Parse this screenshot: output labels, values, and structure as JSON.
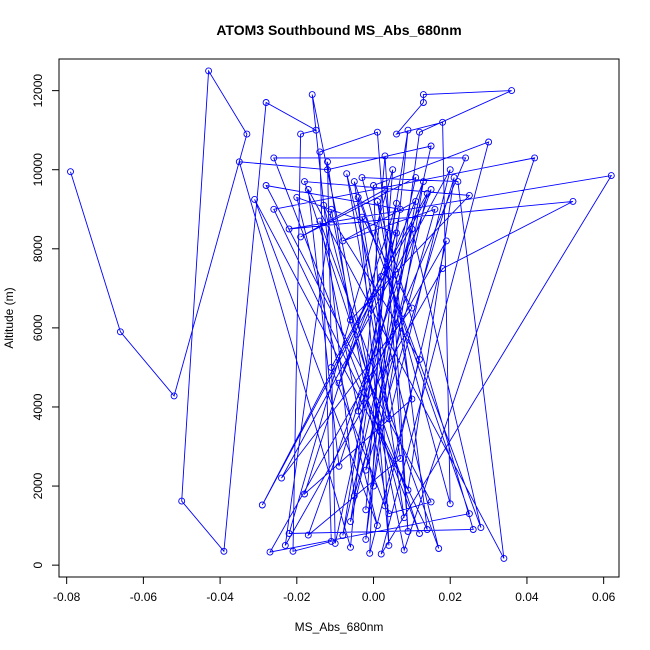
{
  "chart_data": {
    "type": "line",
    "title": "ATOM3 Southbound MS_Abs_680nm",
    "xlabel": "MS_Abs_680nm",
    "ylabel": "Altitude (m)",
    "xlim": [
      -0.082,
      0.064
    ],
    "ylim": [
      -300,
      12800
    ],
    "xticks": [
      -0.08,
      -0.06,
      -0.04,
      -0.02,
      0.0,
      0.02,
      0.04,
      0.06
    ],
    "xtick_labels": [
      "-0.08",
      "-0.06",
      "-0.04",
      "-0.02",
      "0.00",
      "0.02",
      "0.04",
      "0.06"
    ],
    "yticks": [
      0,
      2000,
      4000,
      6000,
      8000,
      10000,
      12000
    ],
    "ytick_labels": [
      "0",
      "2000",
      "4000",
      "6000",
      "8000",
      "10000",
      "12000"
    ],
    "grid": false,
    "legend": "none",
    "series_style": {
      "color": "#0000ff",
      "marker": "open-circle",
      "line": "solid"
    },
    "points": [
      [
        -0.079,
        9950
      ],
      [
        -0.066,
        5900
      ],
      [
        -0.052,
        4280
      ],
      [
        -0.033,
        10900
      ],
      [
        -0.043,
        12500
      ],
      [
        -0.05,
        1620
      ],
      [
        -0.039,
        350
      ],
      [
        -0.028,
        11700
      ],
      [
        -0.015,
        11000
      ],
      [
        -0.019,
        10900
      ],
      [
        -0.021,
        350
      ],
      [
        -0.011,
        600
      ],
      [
        -0.014,
        10450
      ],
      [
        0.001,
        10950
      ],
      [
        0.009,
        850
      ],
      [
        0.003,
        10350
      ],
      [
        -0.006,
        450
      ],
      [
        -0.035,
        10200
      ],
      [
        -0.012,
        10000
      ],
      [
        0.015,
        10600
      ],
      [
        -0.008,
        750
      ],
      [
        0.009,
        11000
      ],
      [
        -0.002,
        650
      ],
      [
        0.012,
        10950
      ],
      [
        0.036,
        12000
      ],
      [
        0.013,
        11900
      ],
      [
        0.013,
        11700
      ],
      [
        0.006,
        10900
      ],
      [
        0.018,
        11200
      ],
      [
        0.02,
        1550
      ],
      [
        -0.003,
        9800
      ],
      [
        0.022,
        9700
      ],
      [
        0.034,
        170
      ],
      [
        -0.017,
        9500
      ],
      [
        -0.009,
        2500
      ],
      [
        0.01,
        8500
      ],
      [
        0.028,
        950
      ],
      [
        -0.004,
        9300
      ],
      [
        0.004,
        500
      ],
      [
        0.0,
        9600
      ],
      [
        0.03,
        10700
      ],
      [
        0.002,
        280
      ],
      [
        0.062,
        9850
      ],
      [
        -0.022,
        8500
      ],
      [
        0.052,
        9200
      ],
      [
        0.018,
        7500
      ],
      [
        -0.023,
        500
      ],
      [
        -0.011,
        9000
      ],
      [
        0.004,
        1300
      ],
      [
        0.015,
        1600
      ],
      [
        -0.028,
        9600
      ],
      [
        0.007,
        9000
      ],
      [
        -0.004,
        3900
      ],
      [
        0.024,
        10300
      ],
      [
        -0.026,
        10300
      ],
      [
        0.012,
        800
      ],
      [
        -0.018,
        9700
      ],
      [
        0.025,
        9350
      ],
      [
        -0.006,
        6200
      ],
      [
        -0.012,
        10200
      ],
      [
        -0.01,
        550
      ],
      [
        0.011,
        9800
      ],
      [
        -0.019,
        8300
      ],
      [
        0.003,
        9500
      ],
      [
        0.014,
        900
      ],
      [
        -0.026,
        9000
      ],
      [
        0.042,
        10300
      ],
      [
        0.008,
        380
      ],
      [
        -0.016,
        11900
      ],
      [
        -0.005,
        1750
      ],
      [
        0.016,
        9000
      ],
      [
        -0.008,
        8200
      ],
      [
        0.011,
        9200
      ],
      [
        -0.002,
        2400
      ],
      [
        0.021,
        9800
      ],
      [
        0.009,
        1900
      ],
      [
        -0.031,
        9250
      ],
      [
        0.001,
        1000
      ],
      [
        -0.02,
        9300
      ],
      [
        0.006,
        8400
      ],
      [
        -0.009,
        4600
      ],
      [
        0.013,
        9700
      ],
      [
        0.0,
        2000
      ],
      [
        -0.014,
        8700
      ],
      [
        0.017,
        420
      ],
      [
        -0.007,
        9900
      ],
      [
        0.004,
        3700
      ],
      [
        0.02,
        10000
      ],
      [
        -0.024,
        2200
      ],
      [
        0.01,
        6500
      ],
      [
        -0.003,
        8800
      ],
      [
        0.007,
        2700
      ],
      [
        -0.017,
        760
      ],
      [
        0.015,
        9500
      ],
      [
        -0.029,
        1520
      ],
      [
        0.002,
        7300
      ],
      [
        -0.001,
        300
      ],
      [
        0.012,
        5200
      ],
      [
        -0.013,
        9100
      ],
      [
        0.008,
        1200
      ],
      [
        -0.005,
        9700
      ],
      [
        0.025,
        1300
      ],
      [
        -0.027,
        330
      ],
      [
        0.019,
        8200
      ],
      [
        0.003,
        1500
      ],
      [
        -0.011,
        5000
      ],
      [
        0.014,
        9400
      ],
      [
        -0.006,
        1100
      ],
      [
        0.006,
        9150
      ],
      [
        -0.018,
        1800
      ],
      [
        0.01,
        4200
      ],
      [
        0.001,
        9200
      ],
      [
        0.026,
        900
      ],
      [
        -0.022,
        800
      ],
      [
        0.005,
        10000
      ],
      [
        -0.002,
        1400
      ]
    ]
  }
}
